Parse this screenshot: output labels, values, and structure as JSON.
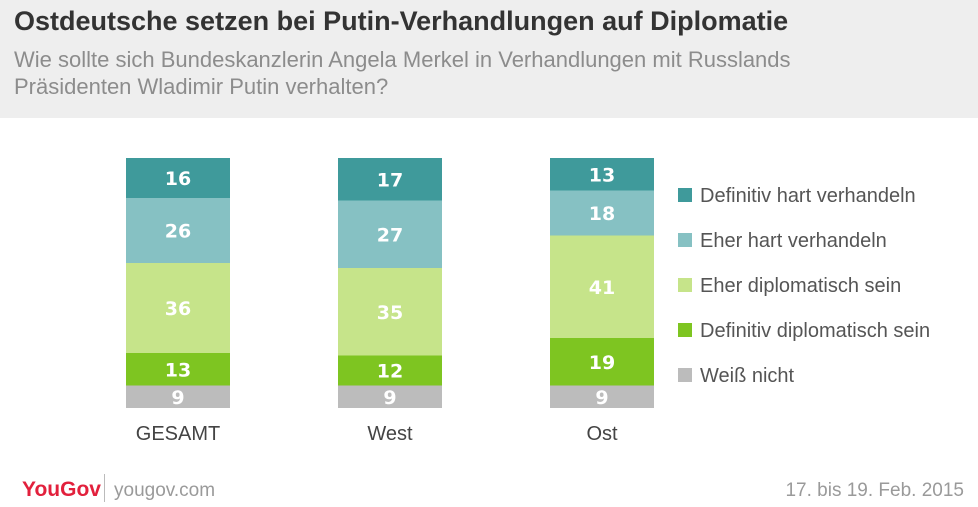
{
  "header": {
    "title": "Ostdeutsche setzen bei Putin-Verhandlungen auf Diplomatie",
    "subtitle": "Wie sollte sich Bundeskanzlerin Angela Merkel in Verhandlungen mit Russlands Präsidenten Wladimir Putin verhalten?"
  },
  "chart_data": {
    "type": "bar",
    "stacked": true,
    "categories": [
      "GESAMT",
      "West",
      "Ost"
    ],
    "series": [
      {
        "name": "Weiß nicht",
        "color": "#bcbcbc",
        "values": [
          9,
          9,
          9
        ]
      },
      {
        "name": "Definitiv diplomatisch sein",
        "color": "#7ec521",
        "values": [
          13,
          12,
          19
        ]
      },
      {
        "name": "Eher diplomatisch sein",
        "color": "#c6e48a",
        "values": [
          36,
          35,
          41
        ]
      },
      {
        "name": "Eher hart verhandeln",
        "color": "#86c1c3",
        "values": [
          26,
          27,
          18
        ]
      },
      {
        "name": "Definitiv hart verhandeln",
        "color": "#3f9a9b",
        "values": [
          16,
          17,
          13
        ]
      }
    ],
    "legend_order": [
      "Definitiv hart verhandeln",
      "Eher hart verhandeln",
      "Eher diplomatisch sein",
      "Definitiv diplomatisch sein",
      "Weiß nicht"
    ],
    "legend_position": "right",
    "axes_visible": false,
    "grid": false
  },
  "footer": {
    "brand": "YouGov",
    "url": "yougov.com",
    "date": "17. bis 19. Feb. 2015"
  }
}
